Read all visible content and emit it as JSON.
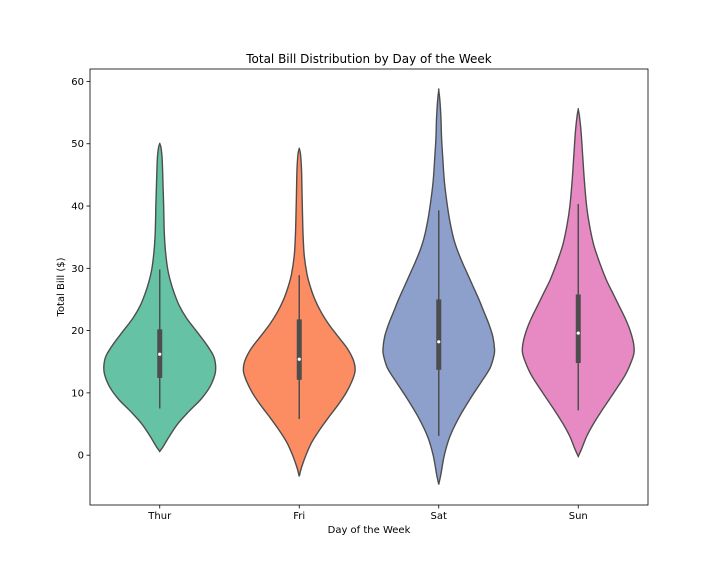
{
  "chart_data": {
    "type": "violin",
    "title": "Total Bill Distribution by Day of the Week",
    "xlabel": "Day of the Week",
    "ylabel": "Total Bill ($)",
    "ylim": [
      -8,
      62
    ],
    "yticks": [
      0,
      10,
      20,
      30,
      40,
      50,
      60
    ],
    "grid": false,
    "categories": [
      "Thur",
      "Fri",
      "Sat",
      "Sun"
    ],
    "colors": [
      "#66c2a5",
      "#fc8d62",
      "#8da0cb",
      "#e78ac3"
    ],
    "series": [
      {
        "category": "Thur",
        "median": 16.2,
        "q1": 12.4,
        "q3": 20.2,
        "whisker_low": 7.5,
        "whisker_high": 29.8,
        "y_min": 0.6,
        "y_max": 50.0,
        "density": [
          [
            0.6,
            0.0
          ],
          [
            1.5,
            0.07
          ],
          [
            3,
            0.17
          ],
          [
            5,
            0.32
          ],
          [
            7,
            0.52
          ],
          [
            9,
            0.74
          ],
          [
            11,
            0.9
          ],
          [
            13,
            0.99
          ],
          [
            14.5,
            1.0
          ],
          [
            16,
            0.96
          ],
          [
            18,
            0.82
          ],
          [
            20,
            0.65
          ],
          [
            22,
            0.48
          ],
          [
            24,
            0.35
          ],
          [
            26,
            0.26
          ],
          [
            28,
            0.19
          ],
          [
            30,
            0.14
          ],
          [
            33,
            0.1
          ],
          [
            36,
            0.08
          ],
          [
            40,
            0.07
          ],
          [
            43,
            0.06
          ],
          [
            46,
            0.05
          ],
          [
            48,
            0.04
          ],
          [
            49.5,
            0.02
          ],
          [
            50,
            0.0
          ]
        ]
      },
      {
        "category": "Fri",
        "median": 15.4,
        "q1": 12.1,
        "q3": 21.8,
        "whisker_low": 5.8,
        "whisker_high": 28.9,
        "y_min": -3.4,
        "y_max": 49.2,
        "density": [
          [
            -3.4,
            0.0
          ],
          [
            -2,
            0.04
          ],
          [
            0,
            0.12
          ],
          [
            2,
            0.22
          ],
          [
            4,
            0.36
          ],
          [
            6,
            0.52
          ],
          [
            8,
            0.69
          ],
          [
            10,
            0.84
          ],
          [
            12,
            0.95
          ],
          [
            13.5,
            1.0
          ],
          [
            15,
            0.98
          ],
          [
            17,
            0.87
          ],
          [
            19,
            0.7
          ],
          [
            21,
            0.53
          ],
          [
            23,
            0.39
          ],
          [
            25,
            0.28
          ],
          [
            27,
            0.2
          ],
          [
            29,
            0.14
          ],
          [
            32,
            0.09
          ],
          [
            35,
            0.07
          ],
          [
            38,
            0.06
          ],
          [
            42,
            0.05
          ],
          [
            46,
            0.04
          ],
          [
            48.5,
            0.02
          ],
          [
            49.2,
            0.0
          ]
        ]
      },
      {
        "category": "Sat",
        "median": 18.2,
        "q1": 13.7,
        "q3": 25.0,
        "whisker_low": 3.1,
        "whisker_high": 39.3,
        "y_min": -4.7,
        "y_max": 58.6,
        "density": [
          [
            -4.7,
            0.0
          ],
          [
            -3,
            0.04
          ],
          [
            0,
            0.1
          ],
          [
            3,
            0.2
          ],
          [
            6,
            0.36
          ],
          [
            9,
            0.56
          ],
          [
            12,
            0.78
          ],
          [
            14,
            0.92
          ],
          [
            16,
            0.99
          ],
          [
            17,
            1.0
          ],
          [
            19,
            0.97
          ],
          [
            21,
            0.9
          ],
          [
            23,
            0.81
          ],
          [
            25,
            0.72
          ],
          [
            27,
            0.62
          ],
          [
            29,
            0.52
          ],
          [
            31,
            0.42
          ],
          [
            33,
            0.33
          ],
          [
            35,
            0.26
          ],
          [
            38,
            0.19
          ],
          [
            41,
            0.14
          ],
          [
            44,
            0.1
          ],
          [
            48,
            0.07
          ],
          [
            51,
            0.05
          ],
          [
            54,
            0.04
          ],
          [
            57,
            0.02
          ],
          [
            58.6,
            0.0
          ]
        ]
      },
      {
        "category": "Sun",
        "median": 19.6,
        "q1": 14.8,
        "q3": 25.8,
        "whisker_low": 7.2,
        "whisker_high": 40.3,
        "y_min": -0.2,
        "y_max": 55.5,
        "density": [
          [
            -0.2,
            0.0
          ],
          [
            1,
            0.06
          ],
          [
            3,
            0.15
          ],
          [
            5,
            0.27
          ],
          [
            7,
            0.41
          ],
          [
            9,
            0.56
          ],
          [
            11,
            0.71
          ],
          [
            13,
            0.85
          ],
          [
            15,
            0.95
          ],
          [
            16.5,
            1.0
          ],
          [
            18,
            0.99
          ],
          [
            20,
            0.93
          ],
          [
            22,
            0.84
          ],
          [
            24,
            0.73
          ],
          [
            26,
            0.62
          ],
          [
            28,
            0.51
          ],
          [
            30,
            0.42
          ],
          [
            32,
            0.34
          ],
          [
            34,
            0.27
          ],
          [
            37,
            0.2
          ],
          [
            40,
            0.15
          ],
          [
            44,
            0.11
          ],
          [
            48,
            0.08
          ],
          [
            52,
            0.05
          ],
          [
            54.5,
            0.02
          ],
          [
            55.5,
            0.0
          ]
        ]
      }
    ]
  }
}
